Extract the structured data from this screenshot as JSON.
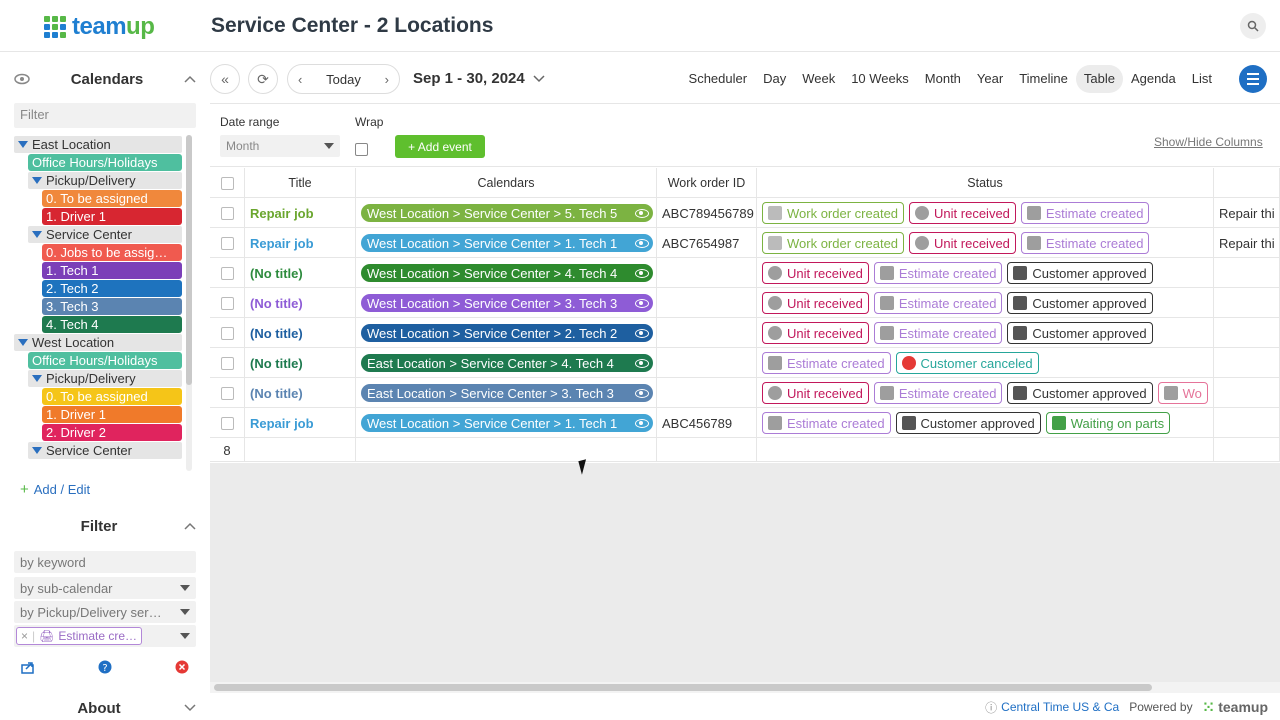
{
  "app": {
    "logo_text_a": "team",
    "logo_text_b": "up",
    "page_title": "Service Center - 2 Locations"
  },
  "sidebar": {
    "calendars_title": "Calendars",
    "filter_placeholder": "Filter",
    "tree": [
      {
        "type": "group",
        "label": "East Location",
        "indent": 0
      },
      {
        "type": "item",
        "label": "Office Hours/Holidays",
        "color": "#4fbf9f",
        "indent": 1
      },
      {
        "type": "group",
        "label": "Pickup/Delivery",
        "indent": 1
      },
      {
        "type": "item",
        "label": "0. To be assigned",
        "color": "#f0883c",
        "indent": 2
      },
      {
        "type": "item",
        "label": "1. Driver 1",
        "color": "#d72631",
        "indent": 2
      },
      {
        "type": "group",
        "label": "Service Center",
        "indent": 1
      },
      {
        "type": "item",
        "label": "0. Jobs to be assig…",
        "color": "#f05a4f",
        "indent": 2
      },
      {
        "type": "item",
        "label": "1. Tech 1",
        "color": "#7b3fb8",
        "indent": 2
      },
      {
        "type": "item",
        "label": "2. Tech 2",
        "color": "#1e73be",
        "indent": 2
      },
      {
        "type": "item",
        "label": "3. Tech 3",
        "color": "#5b84b1",
        "indent": 2
      },
      {
        "type": "item",
        "label": "4. Tech 4",
        "color": "#1e7a4f",
        "indent": 2
      },
      {
        "type": "group",
        "label": "West Location",
        "indent": 0
      },
      {
        "type": "item",
        "label": "Office Hours/Holidays",
        "color": "#4fbf9f",
        "indent": 1
      },
      {
        "type": "group",
        "label": "Pickup/Delivery",
        "indent": 1
      },
      {
        "type": "item",
        "label": "0. To be assigned",
        "color": "#f5c518",
        "indent": 2
      },
      {
        "type": "item",
        "label": "1. Driver 1",
        "color": "#f07a2a",
        "indent": 2
      },
      {
        "type": "item",
        "label": "2. Driver 2",
        "color": "#e0245e",
        "indent": 2
      },
      {
        "type": "group",
        "label": "Service Center",
        "indent": 1
      }
    ],
    "add_edit": "Add / Edit",
    "filter_title": "Filter",
    "filter_keyword": "by keyword",
    "filter_subcal": "by sub-calendar",
    "filter_pickup": "by Pickup/Delivery ser…",
    "filter_chip": "Estimate cre…",
    "about_title": "About"
  },
  "toolbar": {
    "today": "Today",
    "date_range": "Sep 1 - 30, 2024",
    "views": [
      "Scheduler",
      "Day",
      "Week",
      "10 Weeks",
      "Month",
      "Year",
      "Timeline",
      "Table",
      "Agenda",
      "List"
    ],
    "active_view": "Table"
  },
  "subbar": {
    "date_range_label": "Date range",
    "date_range_value": "Month",
    "wrap_label": "Wrap",
    "add_event": "+ Add event",
    "show_hide": "Show/Hide Columns"
  },
  "table": {
    "columns": [
      "Title",
      "Calendars",
      "Work order ID",
      "Status"
    ],
    "rows": [
      {
        "title": "Repair job",
        "title_color": "#6aa62e",
        "calendar": "West Location > Service Center > 5. Tech 5",
        "cal_color": "#7cb342",
        "wo": "ABC789456789",
        "statuses": [
          "work",
          "unit",
          "estimate"
        ],
        "extra": "Repair thi"
      },
      {
        "title": "Repair job",
        "title_color": "#3a9bd5",
        "calendar": "West Location > Service Center > 1. Tech 1",
        "cal_color": "#42a5d5",
        "wo": "ABC7654987",
        "statuses": [
          "work",
          "unit",
          "estimate"
        ],
        "extra": "Repair thi"
      },
      {
        "title": "(No title)",
        "title_color": "#2e8b3e",
        "calendar": "West Location > Service Center > 4. Tech 4",
        "cal_color": "#2e8b2e",
        "wo": "",
        "statuses": [
          "unit",
          "estimate",
          "approved"
        ],
        "extra": ""
      },
      {
        "title": "(No title)",
        "title_color": "#8e5cd6",
        "calendar": "West Location > Service Center > 3. Tech 3",
        "cal_color": "#8e5cd6",
        "wo": "",
        "statuses": [
          "unit",
          "estimate",
          "approved"
        ],
        "extra": ""
      },
      {
        "title": "(No title)",
        "title_color": "#1e5fa0",
        "calendar": "West Location > Service Center > 2. Tech 2",
        "cal_color": "#1e5fa0",
        "wo": "",
        "statuses": [
          "unit",
          "estimate",
          "approved"
        ],
        "extra": ""
      },
      {
        "title": "(No title)",
        "title_color": "#1e7a4f",
        "calendar": "East Location > Service Center > 4. Tech 4",
        "cal_color": "#1e7a4f",
        "wo": "",
        "statuses": [
          "estimate",
          "canceled"
        ],
        "extra": ""
      },
      {
        "title": "(No title)",
        "title_color": "#5b84b1",
        "calendar": "East Location > Service Center > 3. Tech 3",
        "cal_color": "#5b84b1",
        "wo": "",
        "statuses": [
          "unit",
          "estimate",
          "approved",
          "wo_trunc"
        ],
        "extra": ""
      },
      {
        "title": "Repair job",
        "title_color": "#3a9bd5",
        "calendar": "West Location > Service Center > 1. Tech 1",
        "cal_color": "#42a5d5",
        "wo": "ABC456789",
        "statuses": [
          "estimate",
          "approved",
          "waiting"
        ],
        "extra": ""
      }
    ],
    "row_count": "8",
    "status_defs": {
      "work": {
        "label": "Work order created",
        "color": "#7cb342",
        "icon_color": "#bbbbbb"
      },
      "unit": {
        "label": "Unit received",
        "color": "#c2185b",
        "icon_color": "#9e9e9e"
      },
      "estimate": {
        "label": "Estimate created",
        "color": "#ab7cd6",
        "icon_color": "#9e9e9e"
      },
      "approved": {
        "label": "Customer approved",
        "color": "#333333",
        "icon_color": "#555555"
      },
      "canceled": {
        "label": "Customer canceled",
        "color": "#26a69a",
        "icon_color": "#e53935"
      },
      "waiting": {
        "label": "Waiting on parts",
        "color": "#43a047",
        "icon_color": "#43a047"
      },
      "wo_trunc": {
        "label": "Wo",
        "color": "#e57399",
        "icon_color": "#9e9e9e"
      }
    }
  },
  "footer": {
    "timezone": "Central Time US & Ca",
    "powered": "Powered by",
    "brand": "teamup"
  }
}
